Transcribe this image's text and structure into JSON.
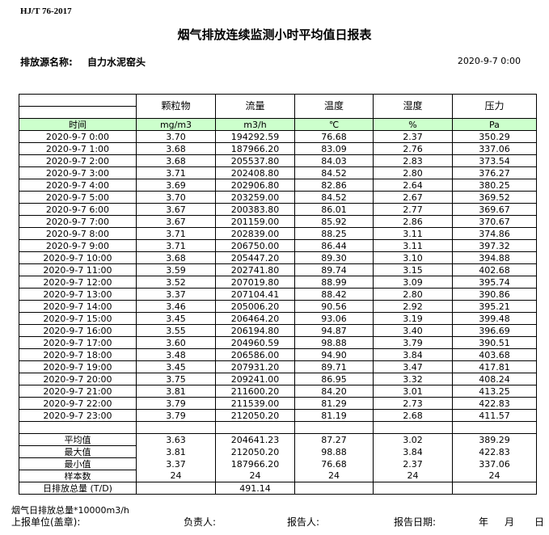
{
  "standard": "HJ/T  76-2017",
  "title": "烟气排放连续监测小时平均值日报表",
  "source_label": "排放源名称:",
  "source_value": "自力水泥窑头",
  "report_datetime": "2020-9-7  0:00",
  "header_bg_color": "#ccffcc",
  "columns": [
    {
      "name": "颗粒物",
      "unit": "mg/m3"
    },
    {
      "name": "流量",
      "unit": "m3/h"
    },
    {
      "name": "温度",
      "unit": "℃"
    },
    {
      "name": "湿度",
      "unit": "%"
    },
    {
      "name": "压力",
      "unit": "Pa"
    }
  ],
  "time_header": "时间",
  "rows": [
    [
      "2020-9-7 0:00",
      "3.70",
      "194292.59",
      "76.68",
      "2.37",
      "350.29"
    ],
    [
      "2020-9-7 1:00",
      "3.68",
      "187966.20",
      "83.09",
      "2.76",
      "337.06"
    ],
    [
      "2020-9-7 2:00",
      "3.68",
      "205537.80",
      "84.03",
      "2.83",
      "373.54"
    ],
    [
      "2020-9-7 3:00",
      "3.71",
      "202408.80",
      "84.52",
      "2.80",
      "376.27"
    ],
    [
      "2020-9-7 4:00",
      "3.69",
      "202906.80",
      "82.86",
      "2.64",
      "380.25"
    ],
    [
      "2020-9-7 5:00",
      "3.70",
      "203259.00",
      "84.52",
      "2.67",
      "369.52"
    ],
    [
      "2020-9-7 6:00",
      "3.67",
      "200383.80",
      "86.01",
      "2.77",
      "369.67"
    ],
    [
      "2020-9-7 7:00",
      "3.67",
      "201159.00",
      "85.92",
      "2.86",
      "370.67"
    ],
    [
      "2020-9-7 8:00",
      "3.71",
      "202839.00",
      "88.25",
      "3.11",
      "374.86"
    ],
    [
      "2020-9-7 9:00",
      "3.71",
      "206750.00",
      "86.44",
      "3.11",
      "397.32"
    ],
    [
      "2020-9-7 10:00",
      "3.68",
      "205447.20",
      "89.30",
      "3.10",
      "394.88"
    ],
    [
      "2020-9-7 11:00",
      "3.59",
      "202741.80",
      "89.74",
      "3.15",
      "402.68"
    ],
    [
      "2020-9-7 12:00",
      "3.52",
      "207019.80",
      "88.99",
      "3.09",
      "395.74"
    ],
    [
      "2020-9-7 13:00",
      "3.37",
      "207104.41",
      "88.42",
      "2.80",
      "390.86"
    ],
    [
      "2020-9-7 14:00",
      "3.46",
      "205006.20",
      "90.56",
      "2.92",
      "395.21"
    ],
    [
      "2020-9-7 15:00",
      "3.45",
      "206464.20",
      "93.06",
      "3.19",
      "399.48"
    ],
    [
      "2020-9-7 16:00",
      "3.55",
      "206194.80",
      "94.87",
      "3.40",
      "396.69"
    ],
    [
      "2020-9-7 17:00",
      "3.60",
      "204960.59",
      "98.88",
      "3.79",
      "390.51"
    ],
    [
      "2020-9-7 18:00",
      "3.48",
      "206586.00",
      "94.90",
      "3.84",
      "403.68"
    ],
    [
      "2020-9-7 19:00",
      "3.45",
      "207931.20",
      "89.71",
      "3.47",
      "417.81"
    ],
    [
      "2020-9-7 20:00",
      "3.75",
      "209241.00",
      "86.95",
      "3.32",
      "408.24"
    ],
    [
      "2020-9-7 21:00",
      "3.81",
      "211600.20",
      "84.20",
      "3.01",
      "413.25"
    ],
    [
      "2020-9-7 22:00",
      "3.79",
      "211539.00",
      "81.29",
      "2.73",
      "422.83"
    ],
    [
      "2020-9-7 23:00",
      "3.79",
      "212050.20",
      "81.19",
      "2.68",
      "411.57"
    ]
  ],
  "summary": [
    [
      "平均值",
      "3.63",
      "204641.23",
      "87.27",
      "3.02",
      "389.29"
    ],
    [
      "最大值",
      "3.81",
      "212050.20",
      "98.88",
      "3.84",
      "422.83"
    ],
    [
      "最小值",
      "3.37",
      "187966.20",
      "76.68",
      "2.37",
      "337.06"
    ],
    [
      "样本数",
      "24",
      "24",
      "24",
      "24",
      "24"
    ]
  ],
  "daily_total": [
    "日排放总量 (T/D)",
    "",
    "491.14",
    "",
    "",
    ""
  ],
  "note": "烟气日排放总量*10000m3/h",
  "footer": {
    "unit": "上报单位(盖章):",
    "responsible": "负责人:",
    "reporter": "报告人:",
    "report_date": "报告日期:",
    "year": "年",
    "month": "月",
    "day": "日"
  }
}
